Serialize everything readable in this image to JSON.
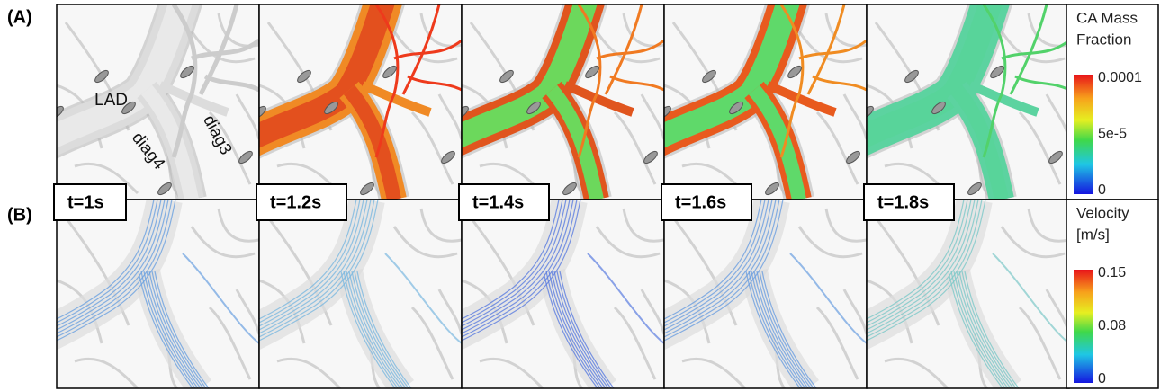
{
  "figure": {
    "panel_labels": [
      "(A)",
      "(B)"
    ],
    "annotations": [
      "LAD",
      "diag4",
      "diag3"
    ],
    "time_labels": [
      "t=1s",
      "t=1.2s",
      "t=1.4s",
      "t=1.6s",
      "t=1.8s"
    ],
    "colorbars": [
      {
        "title_lines": [
          "CA Mass",
          "Fraction"
        ],
        "ticks": [
          "0.0001",
          "5e-5",
          "0"
        ]
      },
      {
        "title_lines": [
          "Velocity",
          "[m/s]"
        ],
        "ticks": [
          "0.15",
          "0.08",
          "0"
        ]
      }
    ]
  }
}
